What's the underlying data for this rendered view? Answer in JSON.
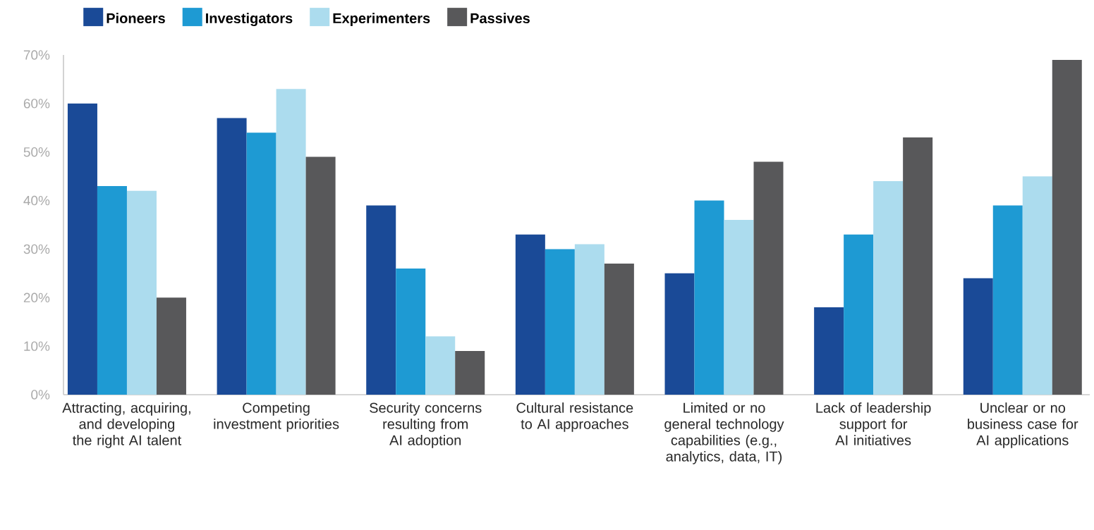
{
  "chart_data": {
    "type": "bar",
    "categories": [
      "Attracting, acquiring, and developing the right AI talent",
      "Competing investment priorities",
      "Security concerns resulting from AI adoption",
      "Cultural resistance to AI approaches",
      "Limited or no general technology capabilities (e.g., analytics, data, IT)",
      "Lack of leadership support for AI initiatives",
      "Unclear or no business case for AI applications"
    ],
    "series": [
      {
        "name": "Pioneers",
        "color": "#1a4a97",
        "values": [
          60,
          57,
          39,
          33,
          25,
          18,
          24
        ]
      },
      {
        "name": "Investigators",
        "color": "#1e9ad3",
        "values": [
          43,
          54,
          26,
          30,
          40,
          33,
          39
        ]
      },
      {
        "name": "Experimenters",
        "color": "#acdcee",
        "values": [
          42,
          63,
          12,
          31,
          36,
          44,
          45
        ]
      },
      {
        "name": "Passives",
        "color": "#58585a",
        "values": [
          20,
          49,
          9,
          27,
          48,
          53,
          69
        ]
      }
    ],
    "ylim": [
      0,
      70
    ],
    "yticks": [
      {
        "value": 0,
        "label": "0%"
      },
      {
        "value": 10,
        "label": "10%"
      },
      {
        "value": 20,
        "label": "20%"
      },
      {
        "value": 30,
        "label": "30%"
      },
      {
        "value": 40,
        "label": "40%"
      },
      {
        "value": 50,
        "label": "50%"
      },
      {
        "value": 60,
        "label": "60%"
      },
      {
        "value": 70,
        "label": "70%"
      }
    ],
    "legend": "top left"
  }
}
